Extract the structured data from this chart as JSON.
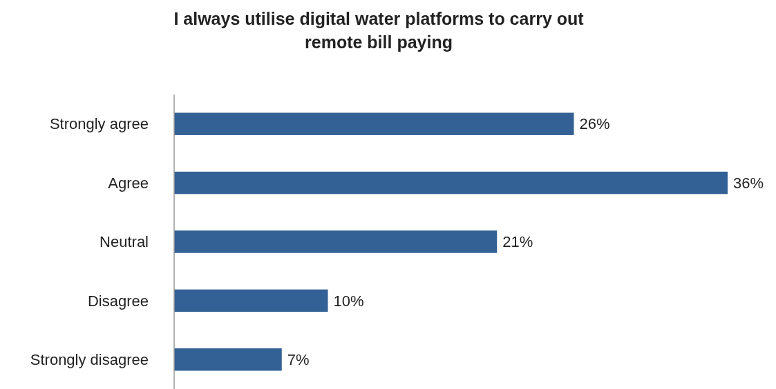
{
  "chart_data": {
    "type": "bar",
    "orientation": "horizontal",
    "title": "I always utilise digital water platforms to carry out remote bill paying",
    "categories": [
      "Strongly agree",
      "Agree",
      "Neutral",
      "Disagree",
      "Strongly disagree"
    ],
    "values": [
      26,
      36,
      21,
      10,
      7
    ],
    "value_labels": [
      "26%",
      "36%",
      "21%",
      "10%",
      "7%"
    ],
    "color": "#346195"
  }
}
